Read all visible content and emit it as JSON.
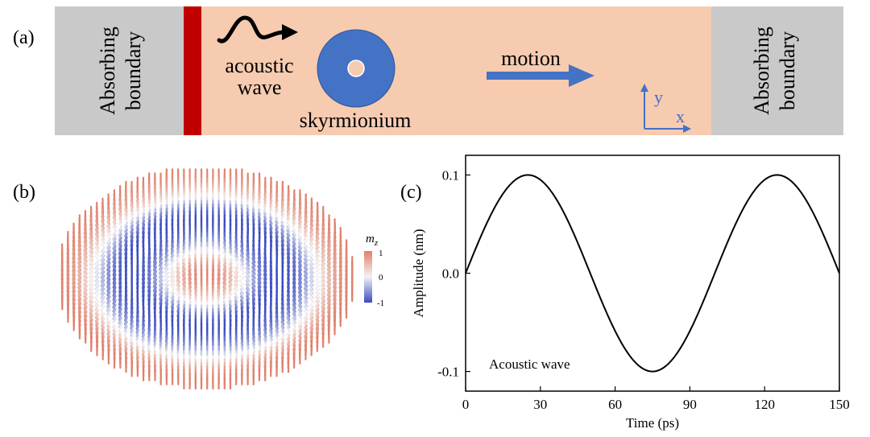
{
  "panel_a": {
    "label": "(a)",
    "left_boundary": [
      "Absorbing",
      "boundary"
    ],
    "right_boundary": [
      "Absorbing",
      "boundary"
    ],
    "wave_label": [
      "acoustic",
      "wave"
    ],
    "object_label": "skyrmionium",
    "motion_label": "motion",
    "axis_y": "y",
    "axis_x": "x",
    "colors": {
      "boundary": "#c9c9c9",
      "track": "#f6cbb0",
      "source": "#c00000",
      "arrow": "#4472c4",
      "skyrmion_outer": "#4472c4",
      "skyrmion_core": "#f6cbb0"
    }
  },
  "panel_b": {
    "label": "(b)",
    "colorbar_title": "m",
    "colorbar_sub": "z",
    "colorbar_ticks": [
      "1",
      "0",
      "-1"
    ],
    "colors": {
      "positive": "#e0806a",
      "neutral": "#f2f2f2",
      "negative": "#3b4cc0"
    }
  },
  "panel_c": {
    "label": "(c)",
    "annotation": "Acoustic wave"
  },
  "chart_data": {
    "type": "line",
    "title": "",
    "xlabel": "Time (ps)",
    "ylabel": "Amplitude (nm)",
    "xlim": [
      0,
      150
    ],
    "ylim": [
      -0.12,
      0.12
    ],
    "xticks": [
      0,
      30,
      60,
      90,
      120,
      150
    ],
    "yticks": [
      -0.1,
      0.0,
      0.1
    ],
    "ytick_labels": [
      "-0.1",
      "0.0",
      "0.1"
    ],
    "function": "0.1*sin(2*pi*t/100)",
    "x": [
      0,
      5,
      10,
      15,
      20,
      25,
      30,
      35,
      40,
      45,
      50,
      55,
      60,
      65,
      70,
      75,
      80,
      85,
      90,
      95,
      100,
      105,
      110,
      115,
      120,
      125,
      130,
      135,
      140,
      145,
      150
    ],
    "series": [
      {
        "values": [
          0.0,
          0.0309,
          0.0588,
          0.0809,
          0.0951,
          0.1,
          0.0951,
          0.0809,
          0.0588,
          0.0309,
          0.0,
          -0.0309,
          -0.0588,
          -0.0809,
          -0.0951,
          -0.1,
          -0.0951,
          -0.0809,
          -0.0588,
          -0.0309,
          0.0,
          0.0309,
          0.0588,
          0.0809,
          0.0951,
          0.1,
          0.0951,
          0.0809,
          0.0588,
          0.0309,
          0.0
        ],
        "color": "#000000"
      }
    ],
    "grid": false,
    "legend": "none"
  }
}
